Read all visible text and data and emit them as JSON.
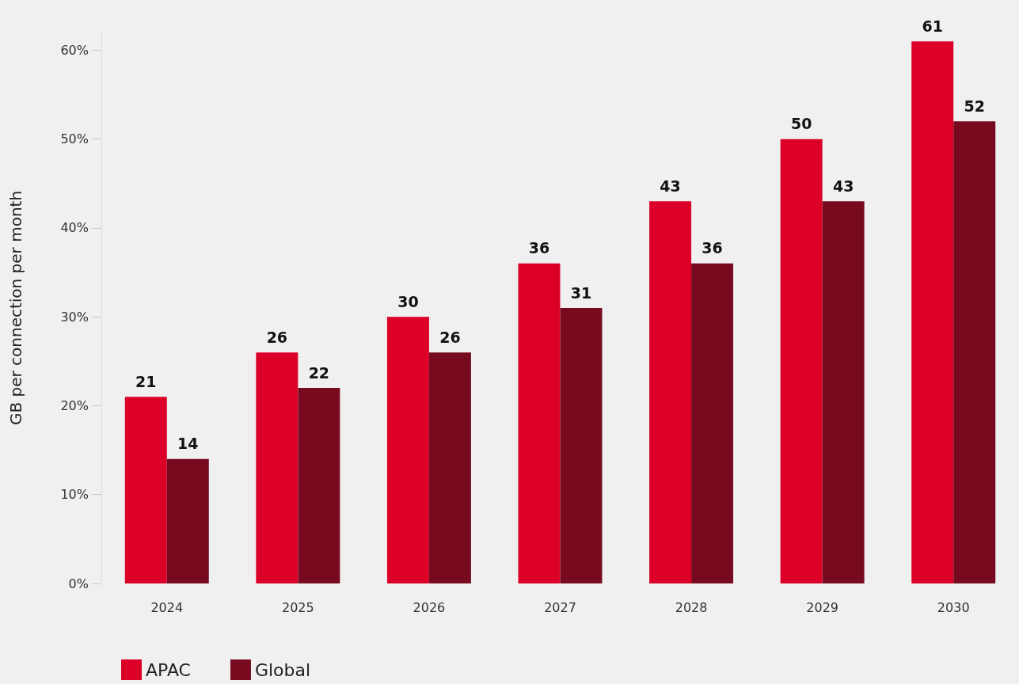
{
  "chart_data": {
    "type": "bar",
    "ylabel": "GB per connection per month",
    "categories": [
      "2024",
      "2025",
      "2026",
      "2027",
      "2028",
      "2029",
      "2030"
    ],
    "series": [
      {
        "name": "APAC",
        "color": "#dc0028",
        "values": [
          21,
          26,
          30,
          36,
          43,
          50,
          61
        ]
      },
      {
        "name": "Global",
        "color": "#780a20",
        "values": [
          14,
          22,
          26,
          31,
          36,
          43,
          52
        ]
      }
    ],
    "ylim": [
      0,
      62
    ],
    "yticks": [
      {
        "value": 0,
        "label": "0%"
      },
      {
        "value": 10,
        "label": "10%"
      },
      {
        "value": 20,
        "label": "20%"
      },
      {
        "value": 30,
        "label": "30%"
      },
      {
        "value": 40,
        "label": "40%"
      },
      {
        "value": 50,
        "label": "50%"
      },
      {
        "value": 60,
        "label": "60%"
      }
    ],
    "grid": false,
    "legend": "bottom left",
    "data_labels": true
  }
}
